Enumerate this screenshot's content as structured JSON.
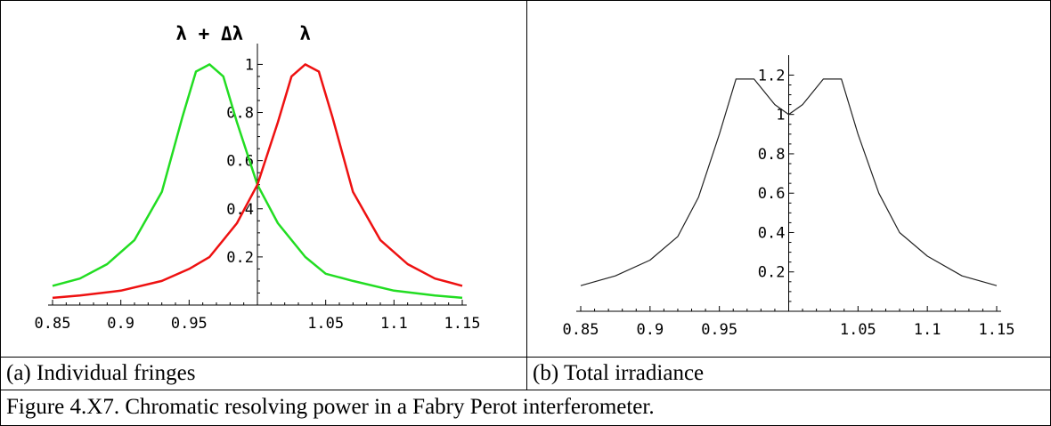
{
  "figure": {
    "caption": "Figure 4.X7.  Chromatic resolving power in a Fabry Perot interferometer."
  },
  "chart_data": [
    {
      "type": "line",
      "caption": "(a) Individual fringes",
      "xlim": [
        0.85,
        1.15
      ],
      "ylim": [
        0,
        1.02
      ],
      "x_ticks": [
        0.85,
        0.9,
        0.95,
        1.05,
        1.1,
        1.15
      ],
      "y_ticks": [
        0.2,
        0.4,
        0.6,
        0.8,
        1
      ],
      "x_tick_labels": [
        "0.85",
        "0.9",
        "0.95",
        "1.05",
        "1.1",
        "1.15"
      ],
      "y_tick_labels": [
        "0.2",
        "0.4",
        "0.6",
        "0.8",
        "1"
      ],
      "annotations": [
        {
          "text": "λ + Δλ",
          "x": 0.965,
          "y": 1.0
        },
        {
          "text": "λ",
          "x": 1.035,
          "y": 1.0
        }
      ],
      "series": [
        {
          "color": "#22dd22",
          "x": [
            0.85,
            0.87,
            0.89,
            0.91,
            0.93,
            0.945,
            0.955,
            0.965,
            0.975,
            0.985,
            1.0,
            1.015,
            1.035,
            1.05,
            1.07,
            1.1,
            1.13,
            1.15
          ],
          "y": [
            0.08,
            0.11,
            0.17,
            0.27,
            0.47,
            0.78,
            0.97,
            1.0,
            0.95,
            0.76,
            0.5,
            0.34,
            0.2,
            0.13,
            0.1,
            0.06,
            0.04,
            0.03
          ]
        },
        {
          "color": "#ee1111",
          "x": [
            0.85,
            0.87,
            0.9,
            0.93,
            0.95,
            0.965,
            0.985,
            1.0,
            1.015,
            1.025,
            1.035,
            1.045,
            1.055,
            1.07,
            1.09,
            1.11,
            1.13,
            1.15
          ],
          "y": [
            0.03,
            0.04,
            0.06,
            0.1,
            0.15,
            0.2,
            0.34,
            0.5,
            0.76,
            0.95,
            1.0,
            0.97,
            0.78,
            0.47,
            0.27,
            0.17,
            0.11,
            0.08
          ]
        }
      ]
    },
    {
      "type": "line",
      "caption": "(b) Total irradiance",
      "xlim": [
        0.85,
        1.15
      ],
      "ylim": [
        0,
        1.22
      ],
      "x_ticks": [
        0.85,
        0.9,
        0.95,
        1.05,
        1.1,
        1.15
      ],
      "y_ticks": [
        0.2,
        0.4,
        0.6,
        0.8,
        1,
        1.2
      ],
      "x_tick_labels": [
        "0.85",
        "0.9",
        "0.95",
        "1.05",
        "1.1",
        "1.15"
      ],
      "y_tick_labels": [
        "0.2",
        "0.4",
        "0.6",
        "0.8",
        "1",
        "1.2"
      ],
      "series": [
        {
          "color": "#222222",
          "x": [
            0.85,
            0.875,
            0.9,
            0.92,
            0.935,
            0.95,
            0.962,
            0.975,
            0.99,
            1.0,
            1.01,
            1.025,
            1.038,
            1.05,
            1.065,
            1.08,
            1.1,
            1.125,
            1.15
          ],
          "y": [
            0.13,
            0.18,
            0.26,
            0.38,
            0.58,
            0.9,
            1.18,
            1.18,
            1.05,
            1.0,
            1.05,
            1.18,
            1.18,
            0.9,
            0.6,
            0.4,
            0.28,
            0.18,
            0.13
          ]
        }
      ]
    }
  ]
}
